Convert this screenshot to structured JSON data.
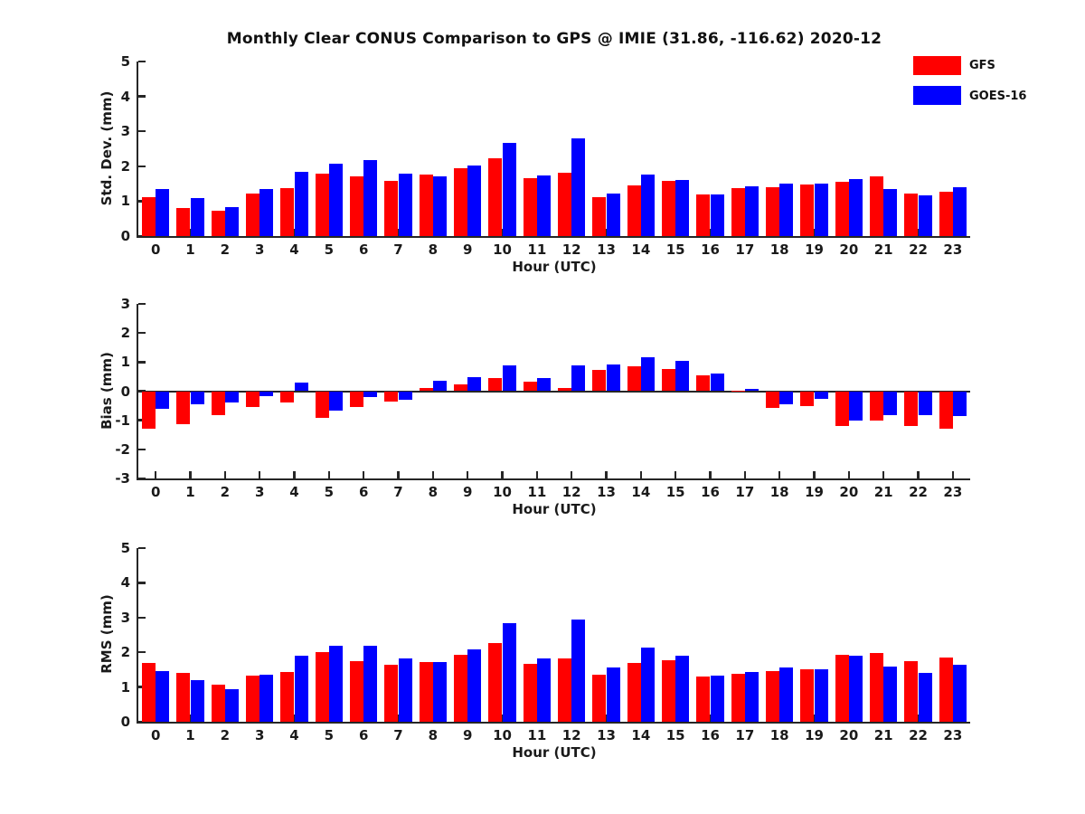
{
  "title": "Monthly Clear CONUS Comparison to GPS @ IMIE (31.86, -116.62) 2020-12",
  "legend": {
    "items": [
      {
        "label": "GFS",
        "color": "#ff0000"
      },
      {
        "label": "GOES-16",
        "color": "#0000ff"
      }
    ]
  },
  "colors": {
    "gfs": "#ff0000",
    "goes16": "#0000ff",
    "axis": "#262626",
    "text": "#1a1a1a"
  },
  "xlabel": "Hour (UTC)",
  "hours": [
    "0",
    "1",
    "2",
    "3",
    "4",
    "5",
    "6",
    "7",
    "8",
    "9",
    "10",
    "11",
    "12",
    "13",
    "14",
    "15",
    "16",
    "17",
    "18",
    "19",
    "20",
    "21",
    "22",
    "23"
  ],
  "chart_data": [
    {
      "type": "bar",
      "title": "",
      "ylabel": "Std. Dev. (mm)",
      "xlabel": "Hour (UTC)",
      "ylim": [
        0,
        5
      ],
      "yticks": [
        0,
        1,
        2,
        3,
        4,
        5
      ],
      "grid": false,
      "legend_position": "outside-upper-right",
      "categories": [
        "0",
        "1",
        "2",
        "3",
        "4",
        "5",
        "6",
        "7",
        "8",
        "9",
        "10",
        "11",
        "12",
        "13",
        "14",
        "15",
        "16",
        "17",
        "18",
        "19",
        "20",
        "21",
        "22",
        "23"
      ],
      "series": [
        {
          "name": "GFS",
          "color": "#ff0000",
          "values": [
            1.12,
            0.8,
            0.72,
            1.23,
            1.37,
            1.8,
            1.7,
            1.58,
            1.75,
            1.95,
            2.24,
            1.65,
            1.82,
            1.12,
            1.44,
            1.57,
            1.2,
            1.38,
            1.4,
            1.47,
            1.55,
            1.7,
            1.23,
            1.27
          ]
        },
        {
          "name": "GOES-16",
          "color": "#0000ff",
          "values": [
            1.36,
            1.1,
            0.83,
            1.36,
            1.85,
            2.08,
            2.18,
            1.8,
            1.72,
            2.02,
            2.68,
            1.74,
            2.8,
            1.23,
            1.75,
            1.6,
            1.19,
            1.42,
            1.51,
            1.49,
            1.64,
            1.34,
            1.17,
            1.39
          ]
        }
      ]
    },
    {
      "type": "bar",
      "title": "",
      "ylabel": "Bias (mm)",
      "xlabel": "Hour (UTC)",
      "ylim": [
        -3,
        3
      ],
      "yticks": [
        -3,
        -2,
        -1,
        0,
        1,
        2,
        3
      ],
      "grid": false,
      "zero_line": true,
      "categories": [
        "0",
        "1",
        "2",
        "3",
        "4",
        "5",
        "6",
        "7",
        "8",
        "9",
        "10",
        "11",
        "12",
        "13",
        "14",
        "15",
        "16",
        "17",
        "18",
        "19",
        "20",
        "21",
        "22",
        "23"
      ],
      "series": [
        {
          "name": "GFS",
          "color": "#ff0000",
          "values": [
            -1.28,
            -1.15,
            -0.82,
            -0.53,
            -0.4,
            -0.91,
            -0.54,
            -0.37,
            0.12,
            0.23,
            0.46,
            0.32,
            0.1,
            0.72,
            0.87,
            0.76,
            0.54,
            0.02,
            -0.57,
            -0.5,
            -1.2,
            -1.02,
            -1.2,
            -1.3
          ]
        },
        {
          "name": "GOES-16",
          "color": "#0000ff",
          "values": [
            -0.62,
            -0.46,
            -0.38,
            -0.18,
            0.31,
            -0.67,
            -0.2,
            -0.29,
            0.35,
            0.48,
            0.9,
            0.45,
            0.88,
            0.92,
            1.18,
            1.04,
            0.6,
            0.07,
            -0.46,
            -0.26,
            -1.02,
            -0.82,
            -0.82,
            -0.87
          ]
        }
      ]
    },
    {
      "type": "bar",
      "title": "",
      "ylabel": "RMS (mm)",
      "xlabel": "Hour (UTC)",
      "ylim": [
        0,
        5
      ],
      "yticks": [
        0,
        1,
        2,
        3,
        4,
        5
      ],
      "grid": false,
      "categories": [
        "0",
        "1",
        "2",
        "3",
        "4",
        "5",
        "6",
        "7",
        "8",
        "9",
        "10",
        "11",
        "12",
        "13",
        "14",
        "15",
        "16",
        "17",
        "18",
        "19",
        "20",
        "21",
        "22",
        "23"
      ],
      "series": [
        {
          "name": "GFS",
          "color": "#ff0000",
          "values": [
            1.69,
            1.4,
            1.06,
            1.33,
            1.42,
            2.0,
            1.74,
            1.65,
            1.73,
            1.93,
            2.26,
            1.66,
            1.81,
            1.36,
            1.69,
            1.77,
            1.29,
            1.39,
            1.47,
            1.51,
            1.94,
            1.97,
            1.74,
            1.84
          ]
        },
        {
          "name": "GOES-16",
          "color": "#0000ff",
          "values": [
            1.47,
            1.19,
            0.93,
            1.36,
            1.9,
            2.18,
            2.18,
            1.82,
            1.73,
            2.08,
            2.84,
            1.81,
            2.93,
            1.56,
            2.13,
            1.9,
            1.33,
            1.42,
            1.56,
            1.52,
            1.91,
            1.59,
            1.41,
            1.65
          ]
        }
      ]
    }
  ]
}
